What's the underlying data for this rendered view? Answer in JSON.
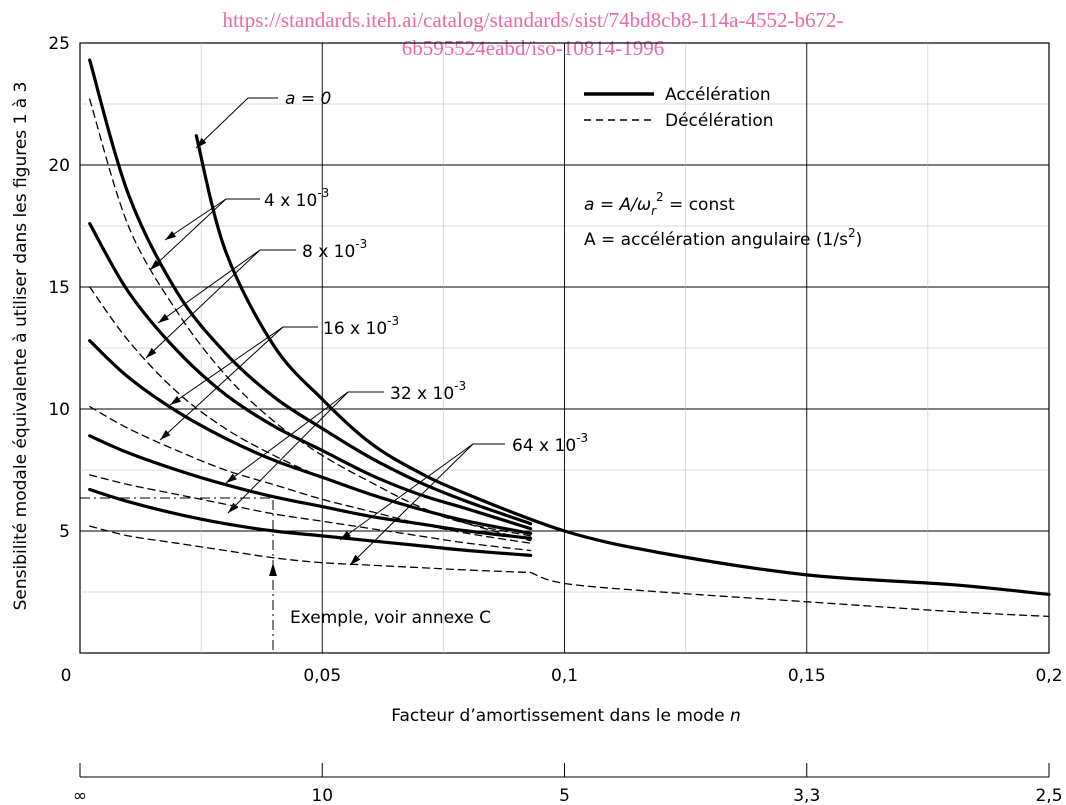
{
  "watermark": {
    "line1": "https://standards.iteh.ai/catalog/standards/sist/74bd8cb8-114a-4552-b672-",
    "line2": "6b595524eabd/iso-10814-1996"
  },
  "chart_data": {
    "type": "line",
    "xlabel_prefix": "Facteur d’amortissement dans le mode ",
    "xlabel_var": "n",
    "ylabel": "Sensibilité modale équivalente à utiliser dans les figures 1 à 3",
    "xlim": [
      0,
      0.2
    ],
    "ylim": [
      0,
      25
    ],
    "x_ticks": [
      "0",
      "0,05",
      "0,1",
      "0,15",
      "0,2"
    ],
    "x_tick_values": [
      0,
      0.05,
      0.1,
      0.15,
      0.2
    ],
    "y_ticks": [
      "5",
      "10",
      "15",
      "20",
      "25"
    ],
    "y_tick_values": [
      5,
      10,
      15,
      20,
      25
    ],
    "grid": true,
    "secondary_axis": {
      "ticks": [
        "∞",
        "10",
        "5",
        "3,3",
        "2,5"
      ],
      "tick_x_values": [
        0,
        0.05,
        0.1,
        0.15,
        0.2
      ]
    },
    "legend": {
      "position": "top-right",
      "entries": [
        {
          "label": "Accélération",
          "style": "solid"
        },
        {
          "label": "Décélération",
          "style": "dashed"
        }
      ]
    },
    "annotations": {
      "formula_prefix": "a = A/ω",
      "formula_sub": "r",
      "formula_sup": "2",
      "formula_suffix": " = const",
      "definition_prefix": "A = accélération angulaire (1/s",
      "definition_sup": "2",
      "definition_suffix": ")",
      "example": "Exemple, voir annexe C"
    },
    "series": [
      {
        "label": "a = 0",
        "style": "solid",
        "x": [
          0.024,
          0.03,
          0.04,
          0.05,
          0.06,
          0.07,
          0.08,
          0.1,
          0.12,
          0.15,
          0.18,
          0.2
        ],
        "y": [
          21.2,
          16.5,
          12.6,
          10.4,
          8.6,
          7.4,
          6.5,
          5.0,
          4.1,
          3.2,
          2.8,
          2.4
        ]
      },
      {
        "label": "4 x 10⁻³",
        "style": "solid",
        "x": [
          0.002,
          0.01,
          0.02,
          0.03,
          0.04,
          0.05,
          0.06,
          0.07,
          0.08,
          0.093
        ],
        "y": [
          24.3,
          18.8,
          14.8,
          12.3,
          10.5,
          9.2,
          8.0,
          7.0,
          6.2,
          5.3
        ]
      },
      {
        "label": "4 x 10⁻³",
        "style": "dashed",
        "x": [
          0.002,
          0.01,
          0.02,
          0.03,
          0.04,
          0.05,
          0.06,
          0.07,
          0.08,
          0.093
        ],
        "y": [
          22.7,
          17.5,
          14.0,
          11.4,
          9.5,
          8.1,
          7.0,
          6.0,
          5.3,
          4.6
        ]
      },
      {
        "label": "8 x 10⁻³",
        "style": "solid",
        "x": [
          0.002,
          0.01,
          0.02,
          0.03,
          0.04,
          0.05,
          0.06,
          0.07,
          0.08,
          0.093
        ],
        "y": [
          17.6,
          14.8,
          12.4,
          10.6,
          9.3,
          8.3,
          7.3,
          6.5,
          5.9,
          5.1
        ]
      },
      {
        "label": "8 x 10⁻³",
        "style": "dashed",
        "x": [
          0.002,
          0.01,
          0.02,
          0.03,
          0.04,
          0.05,
          0.06,
          0.07,
          0.08,
          0.093
        ],
        "y": [
          15.0,
          12.8,
          10.7,
          9.2,
          8.1,
          7.2,
          6.5,
          5.9,
          5.3,
          4.8
        ]
      },
      {
        "label": "16 x 10⁻³",
        "style": "solid",
        "x": [
          0.002,
          0.01,
          0.02,
          0.03,
          0.04,
          0.05,
          0.06,
          0.07,
          0.08,
          0.093
        ],
        "y": [
          12.8,
          11.3,
          9.9,
          8.8,
          7.9,
          7.2,
          6.5,
          5.9,
          5.4,
          4.9
        ]
      },
      {
        "label": "16 x 10⁻³",
        "style": "dashed",
        "x": [
          0.002,
          0.01,
          0.02,
          0.03,
          0.04,
          0.05,
          0.06,
          0.07,
          0.08,
          0.093
        ],
        "y": [
          10.1,
          9.2,
          8.3,
          7.5,
          6.9,
          6.3,
          5.8,
          5.3,
          4.9,
          4.5
        ]
      },
      {
        "label": "32 x 10⁻³",
        "style": "solid",
        "x": [
          0.002,
          0.01,
          0.02,
          0.03,
          0.04,
          0.05,
          0.06,
          0.07,
          0.08,
          0.093
        ],
        "y": [
          8.9,
          8.2,
          7.5,
          6.9,
          6.4,
          6.0,
          5.6,
          5.3,
          5.0,
          4.7
        ]
      },
      {
        "label": "32 x 10⁻³",
        "style": "dashed",
        "x": [
          0.002,
          0.01,
          0.02,
          0.03,
          0.04,
          0.05,
          0.06,
          0.07,
          0.08,
          0.093
        ],
        "y": [
          7.3,
          6.9,
          6.5,
          6.1,
          5.7,
          5.4,
          5.1,
          4.8,
          4.5,
          4.2
        ]
      },
      {
        "label": "64 x 10⁻³",
        "style": "solid",
        "x": [
          0.002,
          0.01,
          0.02,
          0.03,
          0.04,
          0.05,
          0.06,
          0.07,
          0.08,
          0.093
        ],
        "y": [
          6.7,
          6.2,
          5.7,
          5.3,
          5.0,
          4.8,
          4.6,
          4.4,
          4.2,
          4.0
        ]
      },
      {
        "label": "64 x 10⁻³",
        "style": "dashed",
        "x": [
          0.002,
          0.01,
          0.02,
          0.03,
          0.04,
          0.05,
          0.06,
          0.07,
          0.08,
          0.093
        ],
        "y": [
          5.2,
          4.8,
          4.5,
          4.2,
          3.9,
          3.7,
          3.6,
          3.5,
          3.4,
          3.3
        ]
      },
      {
        "label": "64 x 10⁻³",
        "style": "dashed",
        "x": [
          0.093,
          0.1,
          0.12,
          0.15,
          0.18,
          0.2
        ],
        "y": [
          3.3,
          2.85,
          2.5,
          2.1,
          1.7,
          1.5
        ]
      }
    ],
    "curve_labels": [
      {
        "base": "a = 0",
        "exp": ""
      },
      {
        "base": "4 x 10",
        "exp": "-3"
      },
      {
        "base": "8 x 10",
        "exp": "-3"
      },
      {
        "base": "16 x 10",
        "exp": "-3"
      },
      {
        "base": "32 x 10",
        "exp": "-3"
      },
      {
        "base": "64 x 10",
        "exp": "-3"
      }
    ]
  }
}
